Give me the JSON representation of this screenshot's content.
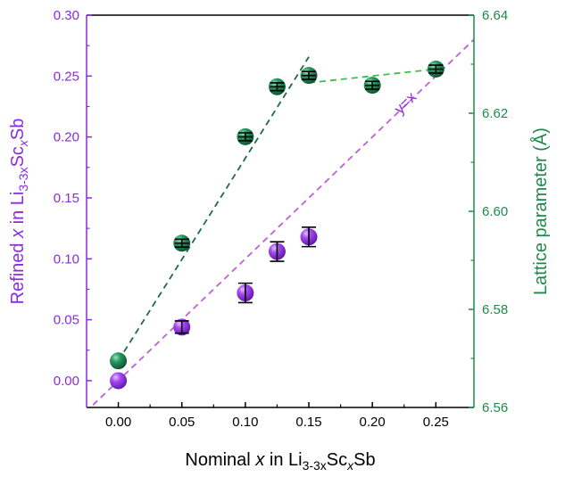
{
  "chart_data": {
    "type": "scatter",
    "xlabel": {
      "pre": "Nominal ",
      "var": "x",
      "mid": " in Li",
      "sub": "3-3x",
      "tail": "Sc",
      "sub2": "x",
      "end": "Sb"
    },
    "ylabel_left": {
      "pre": "Refined ",
      "var": "x",
      "mid": " in Li",
      "sub": "3-3x",
      "tail": "Sc",
      "sub2": "x",
      "end": "Sb"
    },
    "ylabel_right": "Lattice parameter (Å)",
    "xlim": [
      -0.025,
      0.28
    ],
    "ylim_left": [
      -0.022,
      0.3
    ],
    "ylim_right": [
      6.56,
      6.64
    ],
    "x_ticks": [
      "0.00",
      "0.05",
      "0.10",
      "0.15",
      "0.20",
      "0.25"
    ],
    "y_left_ticks": [
      "0.00",
      "0.05",
      "0.10",
      "0.15",
      "0.20",
      "0.25",
      "0.30"
    ],
    "y_right_ticks": [
      "6.56",
      "6.58",
      "6.60",
      "6.62",
      "6.64"
    ],
    "colors": {
      "purple": "#8b2fd8",
      "purple_axis": "#8a2be2",
      "green": "#1b7a4f",
      "green_axis": "#1e8a4a",
      "fit_green": "#1f6b48",
      "fit_lightgreen": "#3bbf4a",
      "fit_purple": "#c060d8"
    },
    "series": [
      {
        "axis": "left",
        "x": [
          0.0,
          0.05,
          0.1,
          0.125,
          0.15
        ],
        "y": [
          0.0,
          0.044,
          0.072,
          0.106,
          0.118
        ],
        "err": [
          0.0,
          0.005,
          0.008,
          0.008,
          0.008
        ]
      },
      {
        "axis": "right",
        "x": [
          0.0,
          0.05,
          0.1,
          0.125,
          0.15,
          0.2,
          0.25
        ],
        "y": [
          6.5695,
          6.5935,
          6.6152,
          6.6254,
          6.6277,
          6.6257,
          6.629
        ],
        "err": [
          0.0,
          0.0008,
          0.0008,
          0.0008,
          0.0008,
          0.0008,
          0.0008
        ]
      }
    ],
    "fit_lines": [
      {
        "axis": "right",
        "style": "dashed",
        "color_key": "fit_green",
        "x": [
          0.0,
          0.15
        ],
        "y": [
          6.5695,
          6.6315
        ]
      },
      {
        "axis": "right",
        "style": "dashed",
        "color_key": "fit_lightgreen",
        "x": [
          0.15,
          0.25
        ],
        "y": [
          6.6262,
          6.629
        ]
      },
      {
        "axis": "left",
        "style": "dashed",
        "color_key": "fit_purple",
        "x": [
          -0.02,
          0.28
        ],
        "y": [
          -0.02,
          0.28
        ]
      }
    ],
    "annotations": [
      {
        "text": "y=x",
        "x": 0.222,
        "y": 0.218,
        "rotate": -45,
        "color_key": "purple"
      }
    ]
  }
}
